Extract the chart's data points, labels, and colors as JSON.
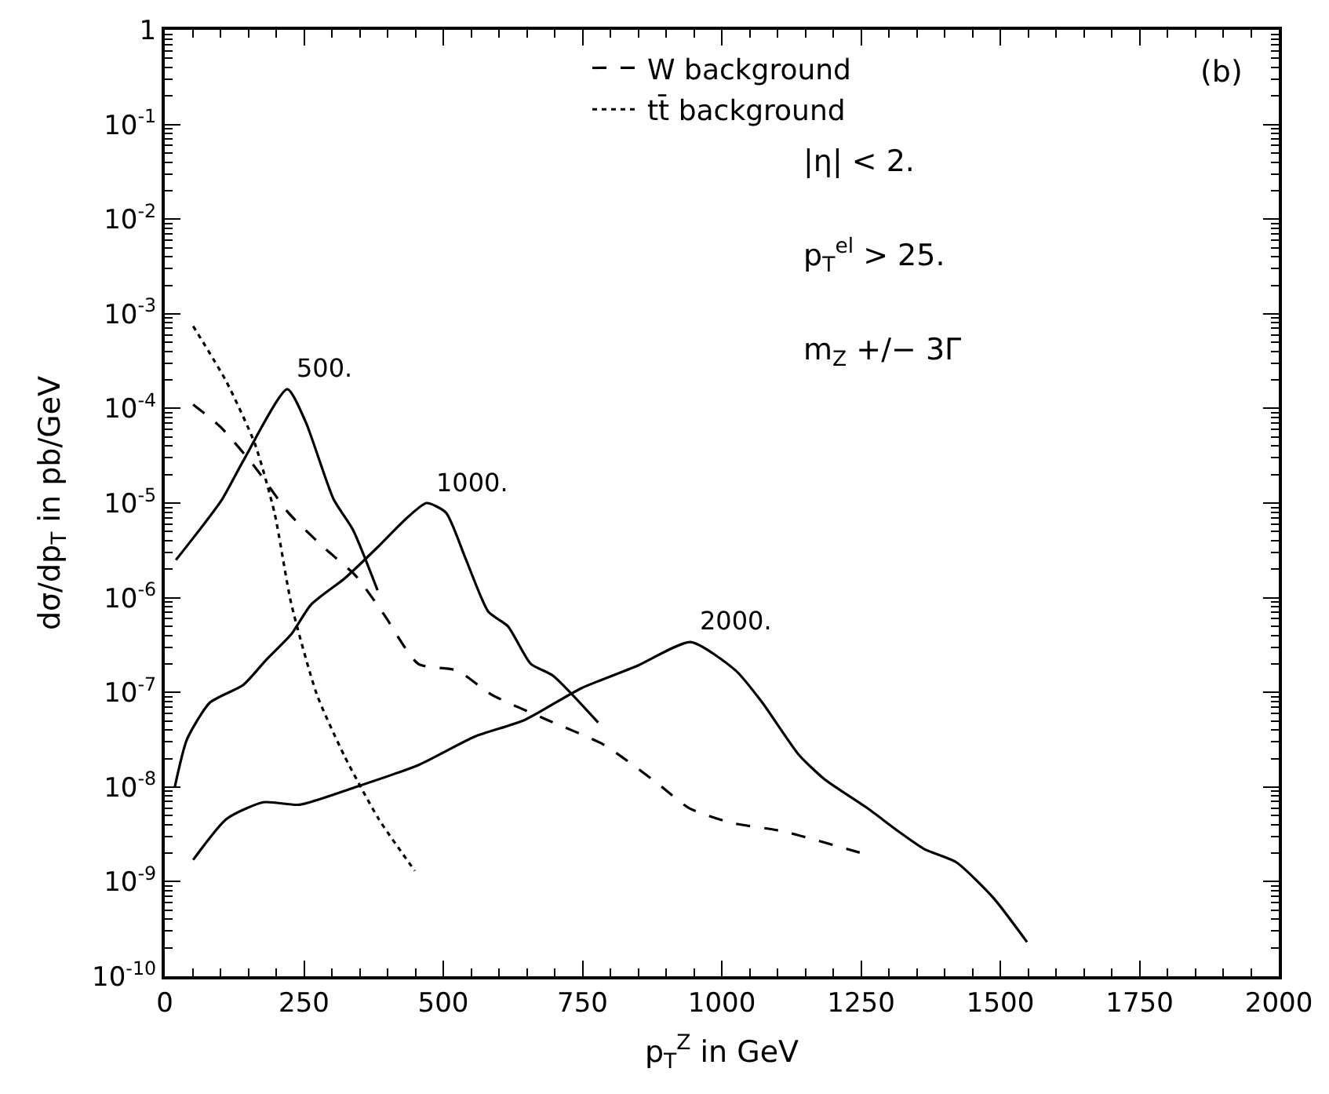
{
  "chart_data": {
    "type": "line",
    "xlabel": "p$_{T}$$^{Z}$ in GeV",
    "ylabel": "dσ/dp$_{T}$ in pb/GeV",
    "log": "y",
    "legend": "top",
    "marker": "none",
    "xlim": [
      0,
      2000
    ],
    "xticks": [
      0,
      250,
      500,
      750,
      1000,
      1250,
      1500,
      1750,
      2000
    ],
    "ylim": [
      1e-10,
      1
    ],
    "yticks": [
      {
        "value": 1e-10,
        "label": "10$^{-10}$"
      },
      {
        "value": 1e-09,
        "label": "10$^{-9}$"
      },
      {
        "value": 1e-08,
        "label": "10$^{-8}$"
      },
      {
        "value": 1e-07,
        "label": "10$^{-7}$"
      },
      {
        "value": 1e-06,
        "label": "10$^{-6}$"
      },
      {
        "value": 1e-05,
        "label": "10$^{-5}$"
      },
      {
        "value": 0.0001,
        "label": "10$^{-4}$"
      },
      {
        "value": 0.001,
        "label": "10$^{-3}$"
      },
      {
        "value": 0.01,
        "label": "10$^{-2}$"
      },
      {
        "value": 0.1,
        "label": "10$^{-1}$"
      },
      1
    ],
    "series": [
      {
        "name": "W background",
        "color": "#000000",
        "line_style": "dashed",
        "x": [
          51,
          101,
          162,
          222,
          283,
          343,
          394,
          455,
          525,
          586,
          687,
          788,
          884,
          941,
          1016,
          1110,
          1251
        ],
        "values": [
          0.00011,
          6.3e-05,
          2.4e-05,
          7.9e-06,
          3.5e-06,
          1.7e-06,
          6.6e-07,
          2e-07,
          1.7e-07,
          9.5e-08,
          5.1e-08,
          2.8e-08,
          1.1e-08,
          6e-09,
          4.2e-09,
          3.4e-09,
          2e-09
        ]
      },
      {
        "name": "tt̄ background",
        "color": "#000000",
        "line_style": "dotted",
        "x": [
          51,
          111,
          162,
          197,
          227,
          273,
          323,
          384,
          449
        ],
        "values": [
          0.00074,
          0.00019,
          4.2e-05,
          7.9e-06,
          8.7e-07,
          9.5e-08,
          2.1e-08,
          4.6e-09,
          1.3e-09
        ]
      },
      {
        "name": "500.",
        "color": "#000000",
        "line_style": "solid",
        "x": [
          20,
          101,
          141,
          220,
          253,
          303,
          338,
          382
        ],
        "values": [
          2.5e-06,
          1.05e-05,
          2.8e-05,
          0.00016,
          7.2e-05,
          1.1e-05,
          5.2e-06,
          1.2e-06
        ]
      },
      {
        "name": "1000.",
        "color": "#000000",
        "line_style": "solid",
        "x": [
          18,
          40,
          81,
          141,
          182,
          227,
          263,
          323,
          384,
          434,
          470,
          505,
          540,
          581,
          616,
          657,
          697,
          778
        ],
        "values": [
          1e-08,
          3.2e-08,
          7.8e-08,
          1.2e-07,
          2.2e-07,
          4.1e-07,
          8.5e-07,
          1.6e-06,
          3.5e-06,
          6.9e-06,
          1e-05,
          7.9e-06,
          2.6e-06,
          7.1e-07,
          5e-07,
          2e-07,
          1.5e-07,
          4.8e-08
        ]
      },
      {
        "name": "2000.",
        "color": "#000000",
        "line_style": "solid",
        "x": [
          51,
          111,
          177,
          242,
          343,
          455,
          556,
          646,
          747,
          848,
          944,
          1025,
          1072,
          1138,
          1185,
          1261,
          1317,
          1364,
          1421,
          1487,
          1548
        ],
        "values": [
          1.7e-09,
          4.6e-09,
          6.9e-09,
          6.5e-09,
          1e-08,
          1.7e-08,
          3.4e-08,
          5.1e-08,
          1.1e-07,
          1.9e-07,
          3.4e-07,
          1.7e-07,
          7.9e-08,
          2.2e-08,
          1.2e-08,
          6e-09,
          3.4e-09,
          2.2e-09,
          1.6e-09,
          6.8e-10,
          2.3e-10
        ]
      }
    ],
    "annotations": [
      "(b)",
      "|η| < 2.",
      "p$_{T}$$^{el}$ > 25.",
      "m$_{Z}$ +/− 3Γ"
    ]
  }
}
